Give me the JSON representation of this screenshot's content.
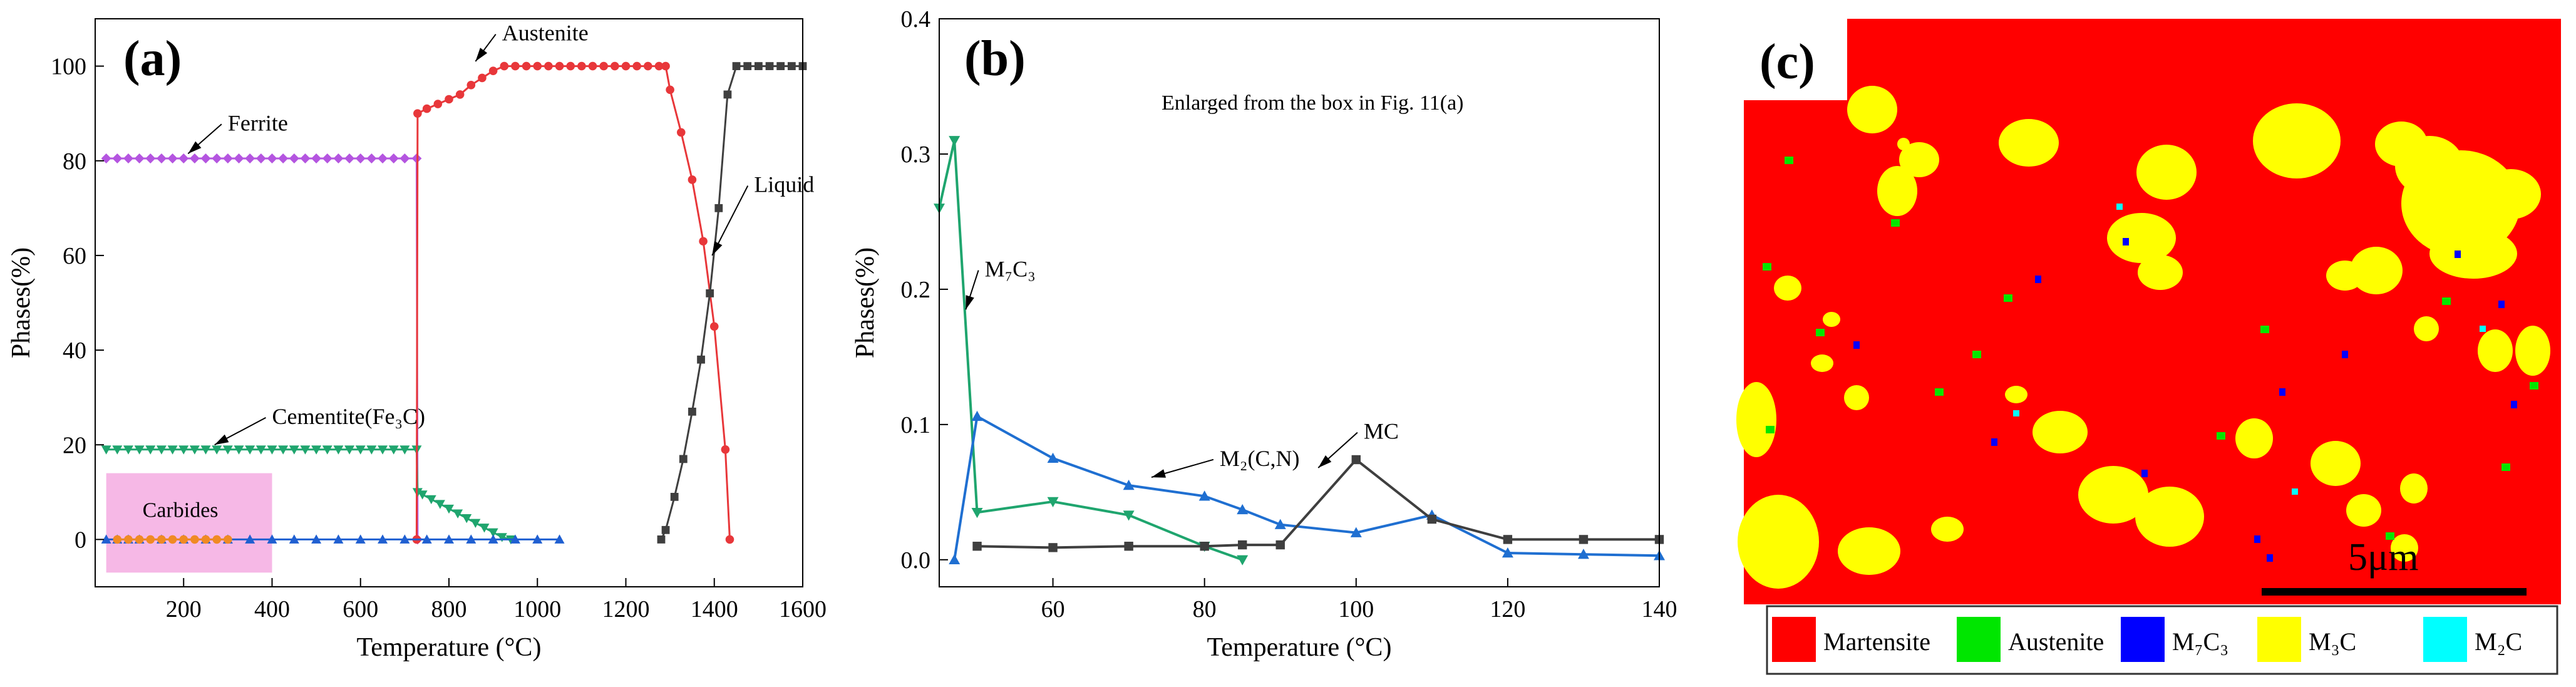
{
  "colors": {
    "ferrite": "#b455e0",
    "austenite": "#e8373a",
    "liquid": "#3f3f3f",
    "cementite": "#1fa56e",
    "carbide_blue": "#1f5fd1",
    "carbide_orange": "#f08a24",
    "carbides_box": "#f6b8e6",
    "panel_b_m7c3": "#1fa56e",
    "panel_b_m2cn": "#1f6fd1",
    "panel_b_mc": "#3f3f3f",
    "martensite": "#ff0000",
    "austenite_map": "#00e600",
    "m7c3_map": "#0000ff",
    "m3c_map": "#ffff00",
    "m2c_map": "#00ffff"
  },
  "chart_data": [
    {
      "type": "line",
      "panel_label": "(a)",
      "xlabel": "Temperature (°C)",
      "ylabel": "Phases(%)",
      "xlim": [
        0,
        1600
      ],
      "ylim": [
        -10,
        110
      ],
      "xticks": [
        200,
        400,
        600,
        800,
        1000,
        1200,
        1400,
        1600
      ],
      "yticks": [
        0,
        20,
        40,
        60,
        80,
        100
      ],
      "box_label": "Carbides",
      "box_range": {
        "x": [
          25,
          400
        ],
        "y": [
          -7,
          14
        ]
      },
      "series": [
        {
          "name": "Ferrite",
          "color_key": "ferrite",
          "marker": "diamond",
          "x": [
            25,
            50,
            75,
            100,
            125,
            150,
            175,
            200,
            225,
            250,
            275,
            300,
            325,
            350,
            375,
            400,
            425,
            450,
            475,
            500,
            525,
            550,
            575,
            600,
            625,
            650,
            675,
            700,
            727,
            729
          ],
          "y": [
            80.5,
            80.5,
            80.5,
            80.5,
            80.5,
            80.5,
            80.5,
            80.5,
            80.5,
            80.5,
            80.5,
            80.5,
            80.5,
            80.5,
            80.5,
            80.5,
            80.5,
            80.5,
            80.5,
            80.5,
            80.5,
            80.5,
            80.5,
            80.5,
            80.5,
            80.5,
            80.5,
            80.5,
            80.5,
            0
          ]
        },
        {
          "name": "Cementite(Fe₃C)",
          "color_key": "cementite",
          "marker": "tri-down",
          "x": [
            25,
            50,
            75,
            100,
            125,
            150,
            175,
            200,
            225,
            250,
            275,
            300,
            325,
            350,
            375,
            400,
            425,
            450,
            475,
            500,
            525,
            550,
            575,
            600,
            625,
            650,
            675,
            700,
            727,
            729,
            740,
            760,
            780,
            800,
            820,
            840,
            860,
            880,
            900,
            920,
            940
          ],
          "y": [
            19,
            19,
            19,
            19,
            19,
            19,
            19,
            19,
            19,
            19,
            19,
            19,
            19,
            19,
            19,
            19,
            19,
            19,
            19,
            19,
            19,
            19,
            19,
            19,
            19,
            19,
            19,
            19,
            19,
            10,
            9.5,
            8.5,
            7.5,
            6.5,
            5.5,
            4.5,
            3.5,
            2.5,
            1.5,
            0.5,
            0
          ]
        },
        {
          "name": "Austenite",
          "color_key": "austenite",
          "marker": "circle",
          "x": [
            727,
            729,
            750,
            775,
            800,
            825,
            850,
            875,
            900,
            925,
            950,
            975,
            1000,
            1025,
            1050,
            1075,
            1100,
            1125,
            1150,
            1175,
            1200,
            1225,
            1250,
            1275,
            1290,
            1300,
            1325,
            1350,
            1375,
            1400,
            1425,
            1435
          ],
          "y": [
            0,
            90,
            91,
            92,
            93,
            94,
            96,
            97.5,
            99,
            100,
            100,
            100,
            100,
            100,
            100,
            100,
            100,
            100,
            100,
            100,
            100,
            100,
            100,
            100,
            100,
            95,
            86,
            76,
            63,
            45,
            19,
            0
          ]
        },
        {
          "name": "Liquid",
          "color_key": "liquid",
          "marker": "square",
          "x": [
            1280,
            1290,
            1310,
            1330,
            1350,
            1370,
            1390,
            1410,
            1430,
            1450,
            1475,
            1500,
            1525,
            1550,
            1575,
            1600
          ],
          "y": [
            0,
            2,
            9,
            17,
            27,
            38,
            52,
            70,
            94,
            100,
            100,
            100,
            100,
            100,
            100,
            100
          ]
        },
        {
          "name": "",
          "color_key": "carbide_blue",
          "marker": "tri-up",
          "x": [
            25,
            50,
            75,
            100,
            150,
            200,
            250,
            300,
            350,
            400,
            450,
            500,
            550,
            600,
            650,
            700,
            750,
            800,
            850,
            900,
            950,
            1000,
            1050
          ],
          "y": [
            0,
            0,
            0,
            0,
            0,
            0,
            0,
            0,
            0,
            0,
            0,
            0,
            0,
            0,
            0,
            0,
            0,
            0,
            0,
            0,
            0,
            0,
            0
          ]
        },
        {
          "name": "",
          "color_key": "carbide_orange",
          "marker": "circle",
          "x": [
            50,
            75,
            100,
            125,
            150,
            175,
            200,
            225,
            250,
            275,
            300
          ],
          "y": [
            0,
            0,
            0,
            0,
            0,
            0,
            0,
            0,
            0,
            0,
            0
          ]
        }
      ],
      "annotations": [
        {
          "text": "Ferrite",
          "tip": [
            210,
            81.5
          ],
          "label": [
            300,
            88
          ]
        },
        {
          "text": "Austenite",
          "tip": [
            860,
            101
          ],
          "label": [
            920,
            107
          ]
        },
        {
          "text": "Liquid",
          "tip": [
            1395,
            60
          ],
          "label": [
            1490,
            75
          ]
        },
        {
          "text": "Cementite(Fe₃C)",
          "tip": [
            270,
            20
          ],
          "label": [
            400,
            26
          ]
        }
      ]
    },
    {
      "type": "line",
      "panel_label": "(b)",
      "title": "Enlarged from the box in Fig. 11(a)",
      "xlabel": "Temperature (°C)",
      "ylabel": "Phases(%)",
      "xlim": [
        45,
        140
      ],
      "ylim": [
        -0.02,
        0.4
      ],
      "xticks": [
        60,
        80,
        100,
        120,
        140
      ],
      "yticks": [
        0.0,
        0.1,
        0.2,
        0.3,
        0.4
      ],
      "series": [
        {
          "name": "M₇C₃",
          "color_key": "panel_b_m7c3",
          "marker": "tri-down",
          "x": [
            45,
            47,
            50,
            60,
            70,
            80,
            85
          ],
          "y": [
            0.26,
            0.31,
            0.035,
            0.043,
            0.033,
            0.01,
            0.0
          ]
        },
        {
          "name": "M₂(C,N)",
          "color_key": "panel_b_m2cn",
          "marker": "tri-up",
          "x": [
            47,
            50,
            60,
            70,
            80,
            85,
            90,
            100,
            110,
            120,
            130,
            140
          ],
          "y": [
            0.0,
            0.106,
            0.075,
            0.055,
            0.047,
            0.037,
            0.026,
            0.02,
            0.033,
            0.005,
            0.004,
            0.003
          ]
        },
        {
          "name": "MC",
          "color_key": "panel_b_mc",
          "marker": "square",
          "x": [
            50,
            60,
            70,
            80,
            85,
            90,
            100,
            110,
            120,
            130,
            140
          ],
          "y": [
            0.01,
            0.009,
            0.01,
            0.01,
            0.011,
            0.011,
            0.074,
            0.03,
            0.015,
            0.015,
            0.015
          ]
        }
      ],
      "annotations": [
        {
          "text": "M₇C₃",
          "tip": [
            48.5,
            0.185
          ],
          "label": [
            51,
            0.215
          ]
        },
        {
          "text": "M₂(C,N)",
          "tip": [
            73,
            0.061
          ],
          "label": [
            82,
            0.075
          ]
        },
        {
          "text": "MC",
          "tip": [
            95,
            0.068
          ],
          "label": [
            101,
            0.095
          ]
        }
      ]
    }
  ],
  "phase_map": {
    "panel_label": "(c)",
    "scale_label": "5μm",
    "legend": [
      {
        "name": "Martensite",
        "color_key": "martensite"
      },
      {
        "name": "Austenite",
        "color_key": "austenite_map"
      },
      {
        "name": "M₇C₃",
        "color_key": "m7c3_map"
      },
      {
        "name": "M₃C",
        "color_key": "m3c_map"
      },
      {
        "name": "M₂C",
        "color_key": "m2c_map"
      }
    ]
  }
}
